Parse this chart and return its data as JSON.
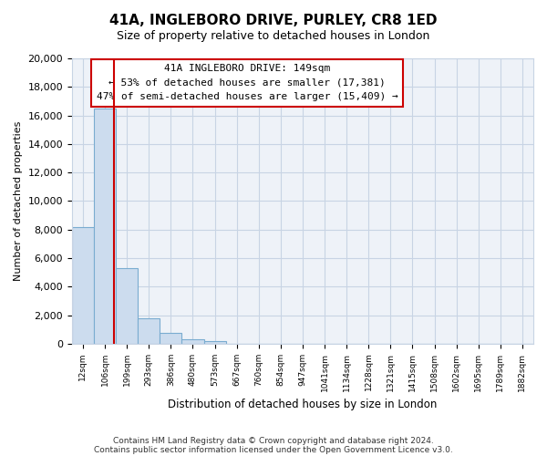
{
  "title": "41A, INGLEBORO DRIVE, PURLEY, CR8 1ED",
  "subtitle": "Size of property relative to detached houses in London",
  "xlabel": "Distribution of detached houses by size in London",
  "ylabel": "Number of detached properties",
  "bar_labels": [
    "12sqm",
    "106sqm",
    "199sqm",
    "293sqm",
    "386sqm",
    "480sqm",
    "573sqm",
    "667sqm",
    "760sqm",
    "854sqm",
    "947sqm",
    "1041sqm",
    "1134sqm",
    "1228sqm",
    "1321sqm",
    "1415sqm",
    "1508sqm",
    "1602sqm",
    "1695sqm",
    "1789sqm",
    "1882sqm"
  ],
  "bar_values": [
    8200,
    16500,
    5300,
    1800,
    750,
    280,
    150,
    0,
    0,
    0,
    0,
    0,
    0,
    0,
    0,
    0,
    0,
    0,
    0,
    0,
    0
  ],
  "bar_color": "#ccdcee",
  "bar_edge_color": "#7aacd0",
  "ylim": [
    0,
    20000
  ],
  "yticks": [
    0,
    2000,
    4000,
    6000,
    8000,
    10000,
    12000,
    14000,
    16000,
    18000,
    20000
  ],
  "property_line_x": 1.43,
  "property_line_color": "#cc0000",
  "annotation_title": "41A INGLEBORO DRIVE: 149sqm",
  "annotation_line1": "← 53% of detached houses are smaller (17,381)",
  "annotation_line2": "47% of semi-detached houses are larger (15,409) →",
  "annotation_box_color": "#ffffff",
  "annotation_box_edge": "#cc0000",
  "footnote1": "Contains HM Land Registry data © Crown copyright and database right 2024.",
  "footnote2": "Contains public sector information licensed under the Open Government Licence v3.0.",
  "background_color": "#ffffff",
  "plot_bg_color": "#eef2f8",
  "grid_color": "#c8d4e4"
}
